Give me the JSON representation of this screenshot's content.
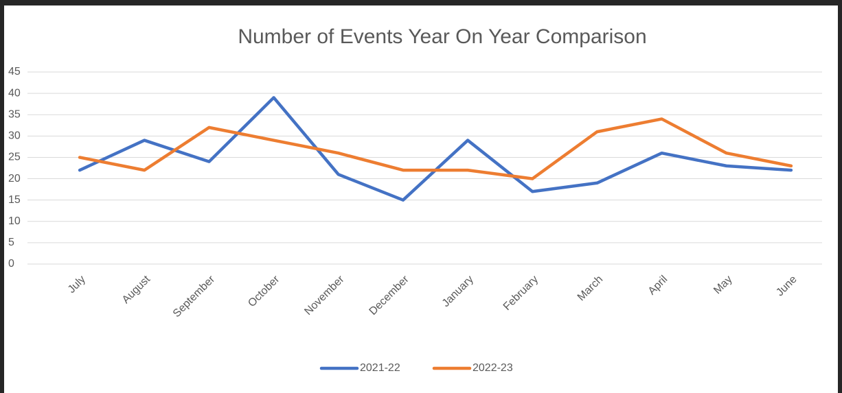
{
  "chart_data": {
    "type": "line",
    "title": "Number of Events Year On Year Comparison",
    "categories": [
      "July",
      "August",
      "September",
      "October",
      "November",
      "December",
      "January",
      "February",
      "March",
      "April",
      "May",
      "June"
    ],
    "series": [
      {
        "name": "2021-22",
        "color": "#4472c4",
        "values": [
          22,
          29,
          24,
          39,
          21,
          15,
          29,
          17,
          19,
          26,
          23,
          22
        ]
      },
      {
        "name": "2022-23",
        "color": "#ed7d31",
        "values": [
          25,
          22,
          32,
          29,
          26,
          22,
          22,
          20,
          31,
          34,
          26,
          23
        ]
      }
    ],
    "ylim": [
      0,
      45
    ],
    "yticks": [
      0,
      5,
      10,
      15,
      20,
      25,
      30,
      35,
      40,
      45
    ],
    "grid": true,
    "legend": "bottom"
  }
}
